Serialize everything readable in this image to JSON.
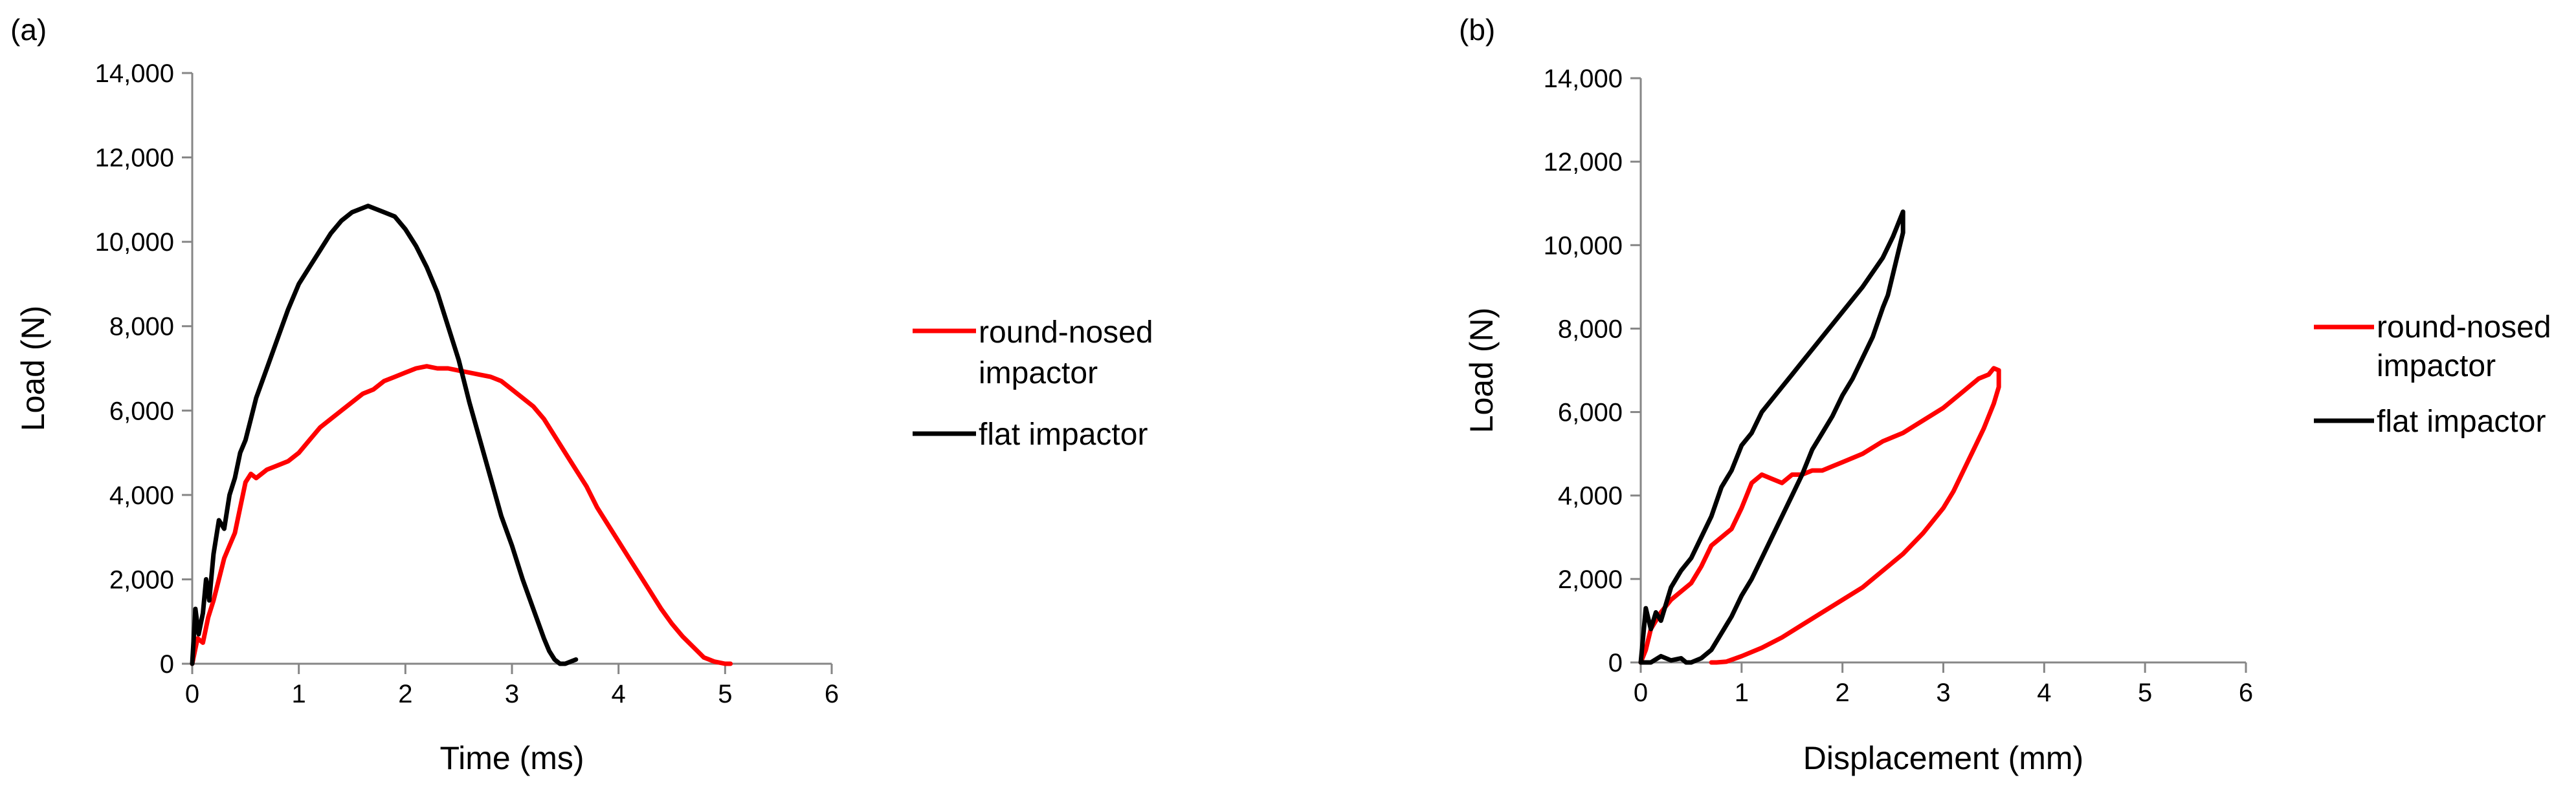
{
  "chart_data": [
    {
      "panel_label": "(a)",
      "type": "line",
      "xlabel": "Time (ms)",
      "ylabel": "Load (N)",
      "xlim": [
        0,
        6
      ],
      "ylim": [
        0,
        14000
      ],
      "xticks": [
        0,
        1,
        2,
        3,
        4,
        5,
        6
      ],
      "yticks": [
        0,
        2000,
        4000,
        6000,
        8000,
        10000,
        12000,
        14000
      ],
      "xtick_labels": [
        "0",
        "1",
        "2",
        "3",
        "4",
        "5",
        "6"
      ],
      "ytick_labels": [
        "0",
        "2,000",
        "4,000",
        "6,000",
        "8,000",
        "10,000",
        "12,000",
        "14,000"
      ],
      "grid": false,
      "legend_position": "right",
      "series": [
        {
          "name": "round-nosed impactor",
          "color": "#ff0000",
          "x": [
            0,
            0.05,
            0.1,
            0.15,
            0.2,
            0.25,
            0.3,
            0.35,
            0.4,
            0.45,
            0.5,
            0.55,
            0.6,
            0.7,
            0.8,
            0.9,
            1.0,
            1.1,
            1.2,
            1.3,
            1.4,
            1.5,
            1.6,
            1.7,
            1.8,
            1.9,
            2.0,
            2.1,
            2.2,
            2.3,
            2.4,
            2.5,
            2.6,
            2.7,
            2.8,
            2.9,
            3.0,
            3.1,
            3.2,
            3.3,
            3.4,
            3.5,
            3.6,
            3.7,
            3.8,
            3.9,
            4.0,
            4.1,
            4.2,
            4.3,
            4.4,
            4.5,
            4.6,
            4.7,
            4.8,
            4.9,
            5.0,
            5.05
          ],
          "y": [
            0,
            600,
            500,
            1100,
            1500,
            2000,
            2500,
            2800,
            3100,
            3700,
            4300,
            4500,
            4400,
            4600,
            4700,
            4800,
            5000,
            5300,
            5600,
            5800,
            6000,
            6200,
            6400,
            6500,
            6700,
            6800,
            6900,
            7000,
            7050,
            7000,
            7000,
            6950,
            6900,
            6850,
            6800,
            6700,
            6500,
            6300,
            6100,
            5800,
            5400,
            5000,
            4600,
            4200,
            3700,
            3300,
            2900,
            2500,
            2100,
            1700,
            1300,
            950,
            650,
            400,
            150,
            50,
            0,
            0
          ]
        },
        {
          "name": "flat impactor",
          "color": "#000000",
          "x": [
            0,
            0.03,
            0.06,
            0.1,
            0.13,
            0.16,
            0.2,
            0.25,
            0.3,
            0.35,
            0.4,
            0.45,
            0.5,
            0.55,
            0.6,
            0.7,
            0.8,
            0.9,
            1.0,
            1.1,
            1.2,
            1.3,
            1.4,
            1.5,
            1.6,
            1.65,
            1.7,
            1.8,
            1.9,
            2.0,
            2.1,
            2.2,
            2.3,
            2.4,
            2.5,
            2.6,
            2.7,
            2.8,
            2.9,
            3.0,
            3.1,
            3.2,
            3.3,
            3.35,
            3.4,
            3.45,
            3.5,
            3.55,
            3.6
          ],
          "y": [
            0,
            1300,
            700,
            1200,
            2000,
            1500,
            2600,
            3400,
            3200,
            4000,
            4400,
            5000,
            5300,
            5800,
            6300,
            7000,
            7700,
            8400,
            9000,
            9400,
            9800,
            10200,
            10500,
            10700,
            10800,
            10850,
            10800,
            10700,
            10600,
            10300,
            9900,
            9400,
            8800,
            8000,
            7200,
            6200,
            5300,
            4400,
            3500,
            2800,
            2000,
            1300,
            600,
            300,
            100,
            0,
            0,
            50,
            100
          ]
        }
      ]
    },
    {
      "panel_label": "(b)",
      "type": "line",
      "xlabel": "Displacement (mm)",
      "ylabel": "Load (N)",
      "xlim": [
        0,
        6
      ],
      "ylim": [
        0,
        14000
      ],
      "xticks": [
        0,
        1,
        2,
        3,
        4,
        5,
        6
      ],
      "yticks": [
        0,
        2000,
        4000,
        6000,
        8000,
        10000,
        12000,
        14000
      ],
      "xtick_labels": [
        "0",
        "1",
        "2",
        "3",
        "4",
        "5",
        "6"
      ],
      "ytick_labels": [
        "0",
        "2,000",
        "4,000",
        "6,000",
        "8,000",
        "10,000",
        "12,000",
        "14,000"
      ],
      "grid": false,
      "legend_position": "right",
      "series": [
        {
          "name": "round-nosed impactor",
          "color": "#ff0000",
          "x": [
            0,
            0.05,
            0.1,
            0.2,
            0.3,
            0.4,
            0.5,
            0.6,
            0.7,
            0.8,
            0.9,
            1.0,
            1.1,
            1.2,
            1.3,
            1.4,
            1.5,
            1.6,
            1.7,
            1.8,
            1.9,
            2.0,
            2.2,
            2.4,
            2.6,
            2.8,
            3.0,
            3.2,
            3.35,
            3.45,
            3.5,
            3.55,
            3.55,
            3.5,
            3.45,
            3.4,
            3.3,
            3.2,
            3.1,
            3.0,
            2.8,
            2.6,
            2.4,
            2.2,
            2.0,
            1.8,
            1.6,
            1.4,
            1.2,
            1.0,
            0.85,
            0.75,
            0.7
          ],
          "y": [
            0,
            300,
            800,
            1200,
            1500,
            1700,
            1900,
            2300,
            2800,
            3000,
            3200,
            3700,
            4300,
            4500,
            4400,
            4300,
            4500,
            4500,
            4600,
            4600,
            4700,
            4800,
            5000,
            5300,
            5500,
            5800,
            6100,
            6500,
            6800,
            6900,
            7050,
            7000,
            6600,
            6200,
            5900,
            5600,
            5100,
            4600,
            4100,
            3700,
            3100,
            2600,
            2200,
            1800,
            1500,
            1200,
            900,
            600,
            350,
            150,
            20,
            0,
            0
          ]
        },
        {
          "name": "flat impactor",
          "color": "#000000",
          "x": [
            0,
            0.05,
            0.1,
            0.15,
            0.2,
            0.3,
            0.4,
            0.5,
            0.6,
            0.7,
            0.8,
            0.9,
            1.0,
            1.1,
            1.2,
            1.3,
            1.4,
            1.5,
            1.6,
            1.8,
            2.0,
            2.2,
            2.4,
            2.5,
            2.6,
            2.6,
            2.55,
            2.5,
            2.45,
            2.4,
            2.3,
            2.2,
            2.1,
            2.0,
            1.9,
            1.8,
            1.7,
            1.6,
            1.5,
            1.4,
            1.3,
            1.2,
            1.1,
            1.0,
            0.9,
            0.8,
            0.7,
            0.6,
            0.5,
            0.45,
            0.4,
            0.3,
            0.2,
            0.1,
            0
          ],
          "y": [
            0,
            1300,
            800,
            1200,
            1000,
            1800,
            2200,
            2500,
            3000,
            3500,
            4200,
            4600,
            5200,
            5500,
            6000,
            6300,
            6600,
            6900,
            7200,
            7800,
            8400,
            9000,
            9700,
            10200,
            10800,
            10300,
            9800,
            9300,
            8800,
            8500,
            7800,
            7300,
            6800,
            6400,
            5900,
            5500,
            5100,
            4500,
            4000,
            3500,
            3000,
            2500,
            2000,
            1600,
            1100,
            700,
            300,
            100,
            0,
            0,
            100,
            50,
            150,
            0,
            0
          ]
        }
      ]
    }
  ]
}
